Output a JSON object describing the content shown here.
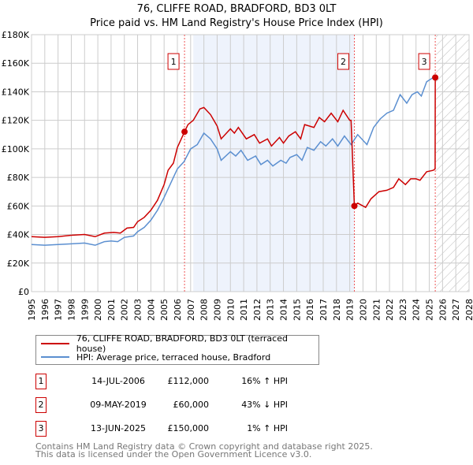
{
  "title": "76, CLIFFE ROAD, BRADFORD, BD3 0LT",
  "subtitle": "Price paid vs. HM Land Registry's House Price Index (HPI)",
  "colors": {
    "property": "#cc0000",
    "hpi": "#5b8fd0",
    "shade": "#eef3fc"
  },
  "chart_data": {
    "type": "line",
    "xlim": [
      1995,
      2028
    ],
    "ylim": [
      0,
      180000
    ],
    "yticks": [
      0,
      20000,
      40000,
      60000,
      80000,
      100000,
      120000,
      140000,
      160000,
      180000
    ],
    "ytick_labels": [
      "£0",
      "£20K",
      "£40K",
      "£60K",
      "£80K",
      "£100K",
      "£120K",
      "£140K",
      "£160K",
      "£180K"
    ],
    "xticks": [
      "1995",
      "1996",
      "1997",
      "1998",
      "1999",
      "2000",
      "2001",
      "2002",
      "2003",
      "2004",
      "2005",
      "2006",
      "2007",
      "2008",
      "2009",
      "2010",
      "2011",
      "2012",
      "2013",
      "2014",
      "2015",
      "2016",
      "2017",
      "2018",
      "2019",
      "2020",
      "2021",
      "2022",
      "2023",
      "2024",
      "2025",
      "2026",
      "2027",
      "2028"
    ],
    "shaded_range": [
      2007.2,
      2019.35
    ],
    "forecast_from": 2025.5,
    "series": [
      {
        "name": "76, CLIFFE ROAD, BRADFORD, BD3 0LT (terraced house)",
        "color": "#cc0000",
        "x": [
          1995,
          1996,
          1997,
          1998,
          1999,
          1999.8,
          2000.5,
          2001.2,
          2001.7,
          2002.2,
          2002.7,
          2003,
          2003.5,
          2004,
          2004.5,
          2005,
          2005.3,
          2005.7,
          2006,
          2006.54,
          2006.8,
          2007.2,
          2007.7,
          2008,
          2008.5,
          2009,
          2009.3,
          2010,
          2010.3,
          2010.6,
          2011.2,
          2011.8,
          2012.2,
          2012.8,
          2013.1,
          2013.7,
          2014,
          2014.4,
          2014.9,
          2015.3,
          2015.6,
          2016.3,
          2016.7,
          2017.1,
          2017.6,
          2018.1,
          2018.5,
          2019.0,
          2019.1,
          2019.35,
          2019.6,
          2020.2,
          2020.6,
          2021.2,
          2021.8,
          2022.3,
          2022.7,
          2023.2,
          2023.6,
          2024.0,
          2024.3,
          2024.8,
          2025.3,
          2025.44,
          2025.45
        ],
        "y": [
          38500,
          38000,
          38500,
          39500,
          40000,
          38500,
          41000,
          41500,
          41000,
          44500,
          45000,
          49000,
          52000,
          57000,
          64000,
          75000,
          85000,
          90000,
          101000,
          112000,
          117000,
          120000,
          128000,
          129000,
          124000,
          116000,
          107000,
          114000,
          111000,
          115000,
          107000,
          110000,
          104000,
          107000,
          102000,
          108000,
          104000,
          109000,
          112000,
          107000,
          117000,
          115000,
          122000,
          119000,
          125000,
          119000,
          127000,
          120000,
          120000,
          60000,
          62000,
          59000,
          65000,
          70000,
          71000,
          73000,
          79000,
          75000,
          79000,
          79000,
          78000,
          84000,
          85000,
          86000,
          150000
        ]
      },
      {
        "name": "HPI: Average price, terraced house, Bradford",
        "color": "#5b8fd0",
        "x": [
          1995,
          1996,
          1997,
          1998,
          1999,
          1999.8,
          2000.5,
          2001,
          2001.5,
          2002,
          2002.7,
          2003,
          2003.5,
          2004,
          2004.5,
          2005,
          2005.5,
          2006,
          2006.5,
          2007,
          2007.5,
          2008,
          2008.5,
          2009,
          2009.3,
          2010,
          2010.4,
          2010.8,
          2011.3,
          2011.9,
          2012.3,
          2012.8,
          2013.2,
          2013.8,
          2014.2,
          2014.5,
          2015,
          2015.4,
          2015.8,
          2016.3,
          2016.8,
          2017.2,
          2017.7,
          2018.1,
          2018.6,
          2019.1,
          2019.6,
          2020.1,
          2020.3,
          2020.8,
          2021.3,
          2021.8,
          2022.3,
          2022.8,
          2023.3,
          2023.7,
          2024.1,
          2024.4,
          2024.8,
          2025.3,
          2025.45
        ],
        "y": [
          33000,
          32500,
          33000,
          33500,
          34000,
          32500,
          35000,
          35500,
          35000,
          38000,
          39000,
          42000,
          45000,
          50000,
          57000,
          66000,
          76000,
          86000,
          91000,
          100000,
          103000,
          111000,
          107000,
          100000,
          92000,
          98000,
          95000,
          99000,
          92000,
          95000,
          89000,
          92000,
          88000,
          92000,
          90000,
          94000,
          96000,
          92000,
          101000,
          99000,
          105000,
          102000,
          107000,
          102000,
          109000,
          103000,
          110000,
          105000,
          103000,
          115000,
          121000,
          125000,
          127000,
          138000,
          132000,
          138000,
          140000,
          137000,
          147000,
          150000,
          152000
        ]
      }
    ],
    "sales": [
      {
        "label": "1",
        "x": 2006.54,
        "y": 112000,
        "date": "14-JUL-2006",
        "price": "£112,000",
        "hpi": "16% ↑ HPI"
      },
      {
        "label": "2",
        "x": 2019.35,
        "y": 60000,
        "date": "09-MAY-2019",
        "price": "£60,000",
        "hpi": "43% ↓ HPI"
      },
      {
        "label": "3",
        "x": 2025.45,
        "y": 150000,
        "date": "13-JUN-2025",
        "price": "£150,000",
        "hpi": "1% ↑ HPI"
      }
    ]
  },
  "legend": {
    "property": "76, CLIFFE ROAD, BRADFORD, BD3 0LT (terraced house)",
    "hpi": "HPI: Average price, terraced house, Bradford"
  },
  "footer": {
    "line1": "Contains HM Land Registry data © Crown copyright and database right 2025.",
    "line2": "This data is licensed under the Open Government Licence v3.0."
  }
}
